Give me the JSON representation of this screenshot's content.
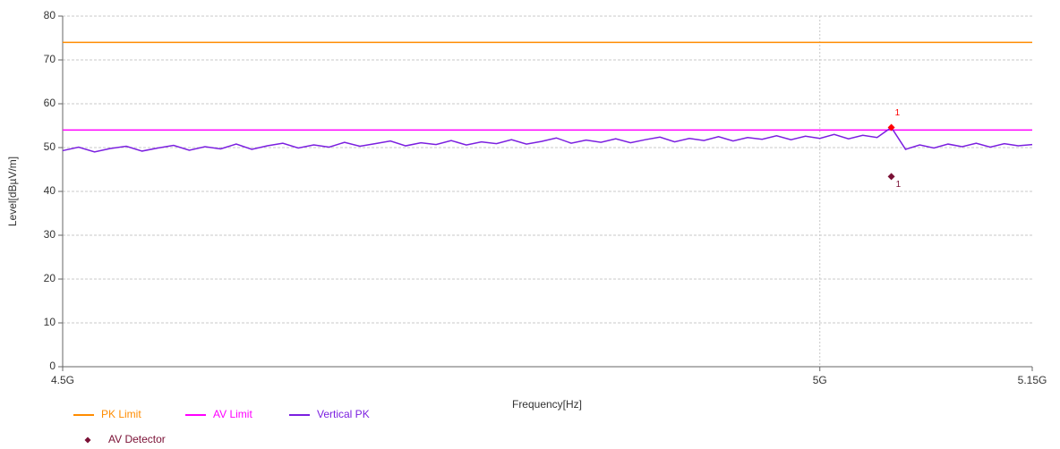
{
  "chart_data": {
    "type": "line",
    "xlabel": "Frequency[Hz]",
    "ylabel": "Level[dBµV/m]",
    "xlog": true,
    "grid": true,
    "xlim": [
      4500000000,
      5150000000
    ],
    "xticks": [
      {
        "value": 4500000000,
        "label": "4.5G"
      },
      {
        "value": 5000000000,
        "label": "5G"
      },
      {
        "value": 5150000000,
        "label": "5.15G"
      }
    ],
    "ylim": [
      0,
      80
    ],
    "yticks": [
      0,
      10,
      20,
      30,
      40,
      50,
      60,
      70,
      80
    ],
    "legend": "bottom-left",
    "series": [
      {
        "name": "PK Limit",
        "color": "#ff8c00",
        "x": [
          4500000000,
          5150000000
        ],
        "values": [
          74,
          74
        ]
      },
      {
        "name": "AV Limit",
        "color": "#ff00ff",
        "x": [
          4500000000,
          5150000000
        ],
        "values": [
          54,
          54
        ]
      },
      {
        "name": "Vertical PK",
        "color": "#7b1fe0",
        "x": [
          4500000000,
          4510000000,
          4520000000,
          4530000000,
          4540000000,
          4550000000,
          4560000000,
          4570000000,
          4580000000,
          4590000000,
          4600000000,
          4610000000,
          4620000000,
          4630000000,
          4640000000,
          4650000000,
          4660000000,
          4670000000,
          4680000000,
          4690000000,
          4700000000,
          4710000000,
          4720000000,
          4730000000,
          4740000000,
          4750000000,
          4760000000,
          4770000000,
          4780000000,
          4790000000,
          4800000000,
          4810000000,
          4820000000,
          4830000000,
          4840000000,
          4850000000,
          4860000000,
          4870000000,
          4880000000,
          4890000000,
          4900000000,
          4910000000,
          4920000000,
          4930000000,
          4940000000,
          4950000000,
          4960000000,
          4970000000,
          4980000000,
          4990000000,
          5000000000,
          5010000000,
          5020000000,
          5030000000,
          5040000000,
          5050000000,
          5060000000,
          5070000000,
          5080000000,
          5090000000,
          5100000000,
          5110000000,
          5120000000,
          5130000000,
          5140000000,
          5150000000
        ],
        "values": [
          49.3,
          50.1,
          49.0,
          49.8,
          50.3,
          49.2,
          49.9,
          50.5,
          49.4,
          50.2,
          49.7,
          50.8,
          49.6,
          50.4,
          51.0,
          49.9,
          50.6,
          50.1,
          51.2,
          50.3,
          50.9,
          51.5,
          50.4,
          51.1,
          50.7,
          51.6,
          50.6,
          51.3,
          50.9,
          51.8,
          50.8,
          51.4,
          52.2,
          51.0,
          51.7,
          51.2,
          52.0,
          51.1,
          51.8,
          52.4,
          51.3,
          52.1,
          51.6,
          52.5,
          51.5,
          52.3,
          51.9,
          52.7,
          51.8,
          52.6,
          52.1,
          53.0,
          52.0,
          52.8,
          52.3,
          54.6,
          49.6,
          50.6,
          49.9,
          50.8,
          50.2,
          51.0,
          50.1,
          50.9,
          50.4,
          50.7
        ]
      },
      {
        "name": "AV Detector",
        "color": "#7a1035",
        "marker": "diamond",
        "x": [
          5050000000
        ],
        "values": [
          43.4
        ],
        "labels": [
          "1"
        ]
      }
    ],
    "markers": [
      {
        "color": "#ff0000",
        "x": [
          5050000000
        ],
        "values": [
          54.6
        ],
        "labels": [
          "1"
        ]
      }
    ]
  }
}
